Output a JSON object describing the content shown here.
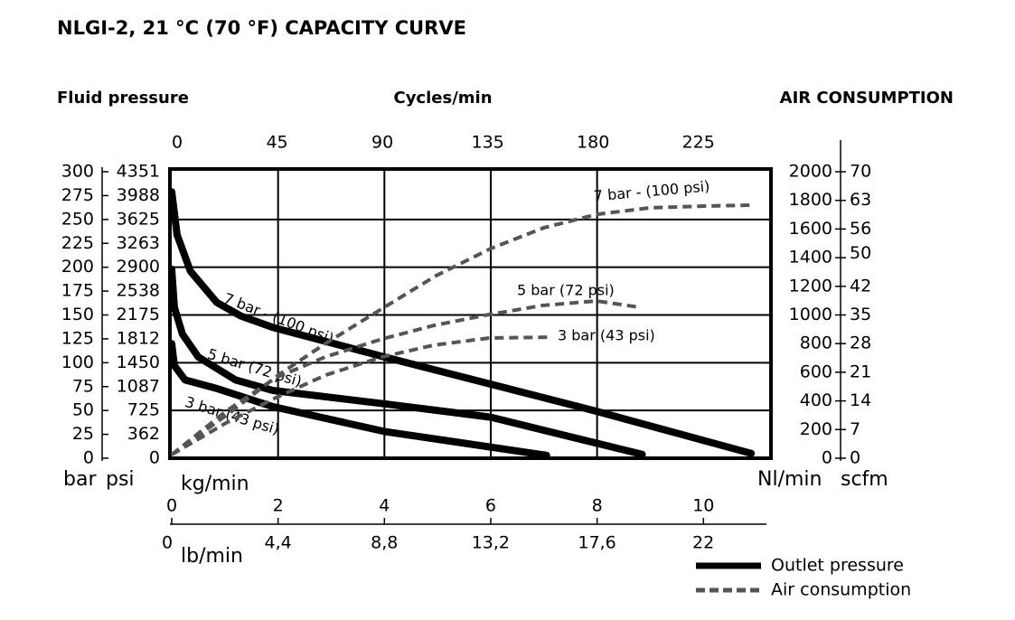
{
  "chart_data": {
    "type": "line",
    "title": "NLGI-2, 21 °C (70 °F) CAPACITY CURVE",
    "left_title": "Fluid pressure",
    "top_title": "Cycles/min",
    "right_title": "AIR CONSUMPTION",
    "ylabel": "bar",
    "psi_label": "psi",
    "y2label": "Nl/min",
    "scfm_label": "scfm",
    "xlabel": "kg/min",
    "lb_label": "lb/min",
    "xlim": [
      0,
      11.27
    ],
    "xticks": [
      0,
      2,
      4,
      6,
      8,
      10
    ],
    "lb_lim": [
      0,
      24.8
    ],
    "lb_ticks": [
      0,
      {
        "value": 4.4,
        "label": "4,4"
      },
      {
        "value": 8.8,
        "label": "8,8"
      },
      {
        "value": 13.2,
        "label": "13,2"
      },
      {
        "value": 17.6,
        "label": "17,6"
      },
      22
    ],
    "cycles_lim": [
      0,
      256
    ],
    "cycles_ticks": [
      0,
      45,
      90,
      135,
      180,
      225
    ],
    "ylim": [
      0,
      300
    ],
    "yticks": [
      0,
      25,
      50,
      75,
      100,
      125,
      150,
      175,
      200,
      225,
      250,
      275,
      300
    ],
    "psi_lim": [
      0,
      4351
    ],
    "psi_ticks": [
      0,
      362,
      725,
      1087,
      1450,
      1812,
      2175,
      2538,
      2900,
      3263,
      3625,
      3988,
      4351
    ],
    "y2lim": [
      0,
      2000
    ],
    "y2ticks": [
      0,
      200,
      400,
      600,
      800,
      1000,
      1200,
      1400,
      1600,
      1800,
      2000
    ],
    "scfm_lim": [
      0,
      70
    ],
    "scfm_ticks": [
      0,
      7,
      14,
      21,
      28,
      35,
      42,
      50,
      56,
      63,
      70
    ],
    "grid": true,
    "series": [
      {
        "name": "7 bar - (100 psi)",
        "axis": "y",
        "color": "#000000",
        "dashed": false,
        "x": [
          0,
          0.1,
          0.35,
          0.85,
          1.3,
          1.9,
          4,
          8,
          10.9
        ],
        "values": [
          279,
          234,
          196,
          163,
          149,
          137,
          106,
          49,
          5
        ]
      },
      {
        "name": "5 bar (72 psi)",
        "axis": "y",
        "color": "#000000",
        "dashed": false,
        "x": [
          0,
          0.05,
          0.2,
          0.5,
          1.2,
          1.9,
          4,
          6,
          8.85
        ],
        "values": [
          198,
          158,
          130,
          106,
          82,
          71,
          57,
          43,
          4
        ]
      },
      {
        "name": "3 bar (43 psi)",
        "axis": "y",
        "color": "#000000",
        "dashed": false,
        "x": [
          0,
          0.05,
          0.25,
          0.85,
          1.9,
          4,
          7.05
        ],
        "values": [
          120,
          97,
          82,
          73,
          54,
          28,
          3
        ]
      },
      {
        "name": "7 bar - (100 psi)",
        "axis": "y2",
        "color": "#555555",
        "dashed": true,
        "x": [
          0,
          1.02,
          2,
          2.89,
          4,
          4.97,
          6,
          7,
          8,
          9,
          10.03,
          10.94
        ],
        "values": [
          25,
          297,
          580,
          800,
          1054,
          1274,
          1464,
          1609,
          1703,
          1748,
          1760,
          1767
        ]
      },
      {
        "name": "5 bar (72 psi)",
        "axis": "y2",
        "color": "#555555",
        "dashed": true,
        "x": [
          0,
          1.02,
          1.96,
          2.89,
          3.96,
          4.93,
          5.97,
          6.97,
          7.99,
          8.79
        ],
        "values": [
          25,
          328,
          562,
          707,
          833,
          927,
          1003,
          1066,
          1098,
          1054
        ]
      },
      {
        "name": "3 bar (43 psi)",
        "axis": "y2",
        "color": "#555555",
        "dashed": true,
        "x": [
          0,
          1.02,
          1.96,
          2.89,
          3.96,
          4.93,
          5.97,
          7.09
        ],
        "values": [
          25,
          246,
          423,
          580,
          707,
          789,
          839,
          845
        ]
      }
    ],
    "legend": [
      {
        "label": "Outlet pressure",
        "color": "#000000",
        "dashed": false
      },
      {
        "label": "Air consumption",
        "color": "#555555",
        "dashed": true
      }
    ]
  }
}
